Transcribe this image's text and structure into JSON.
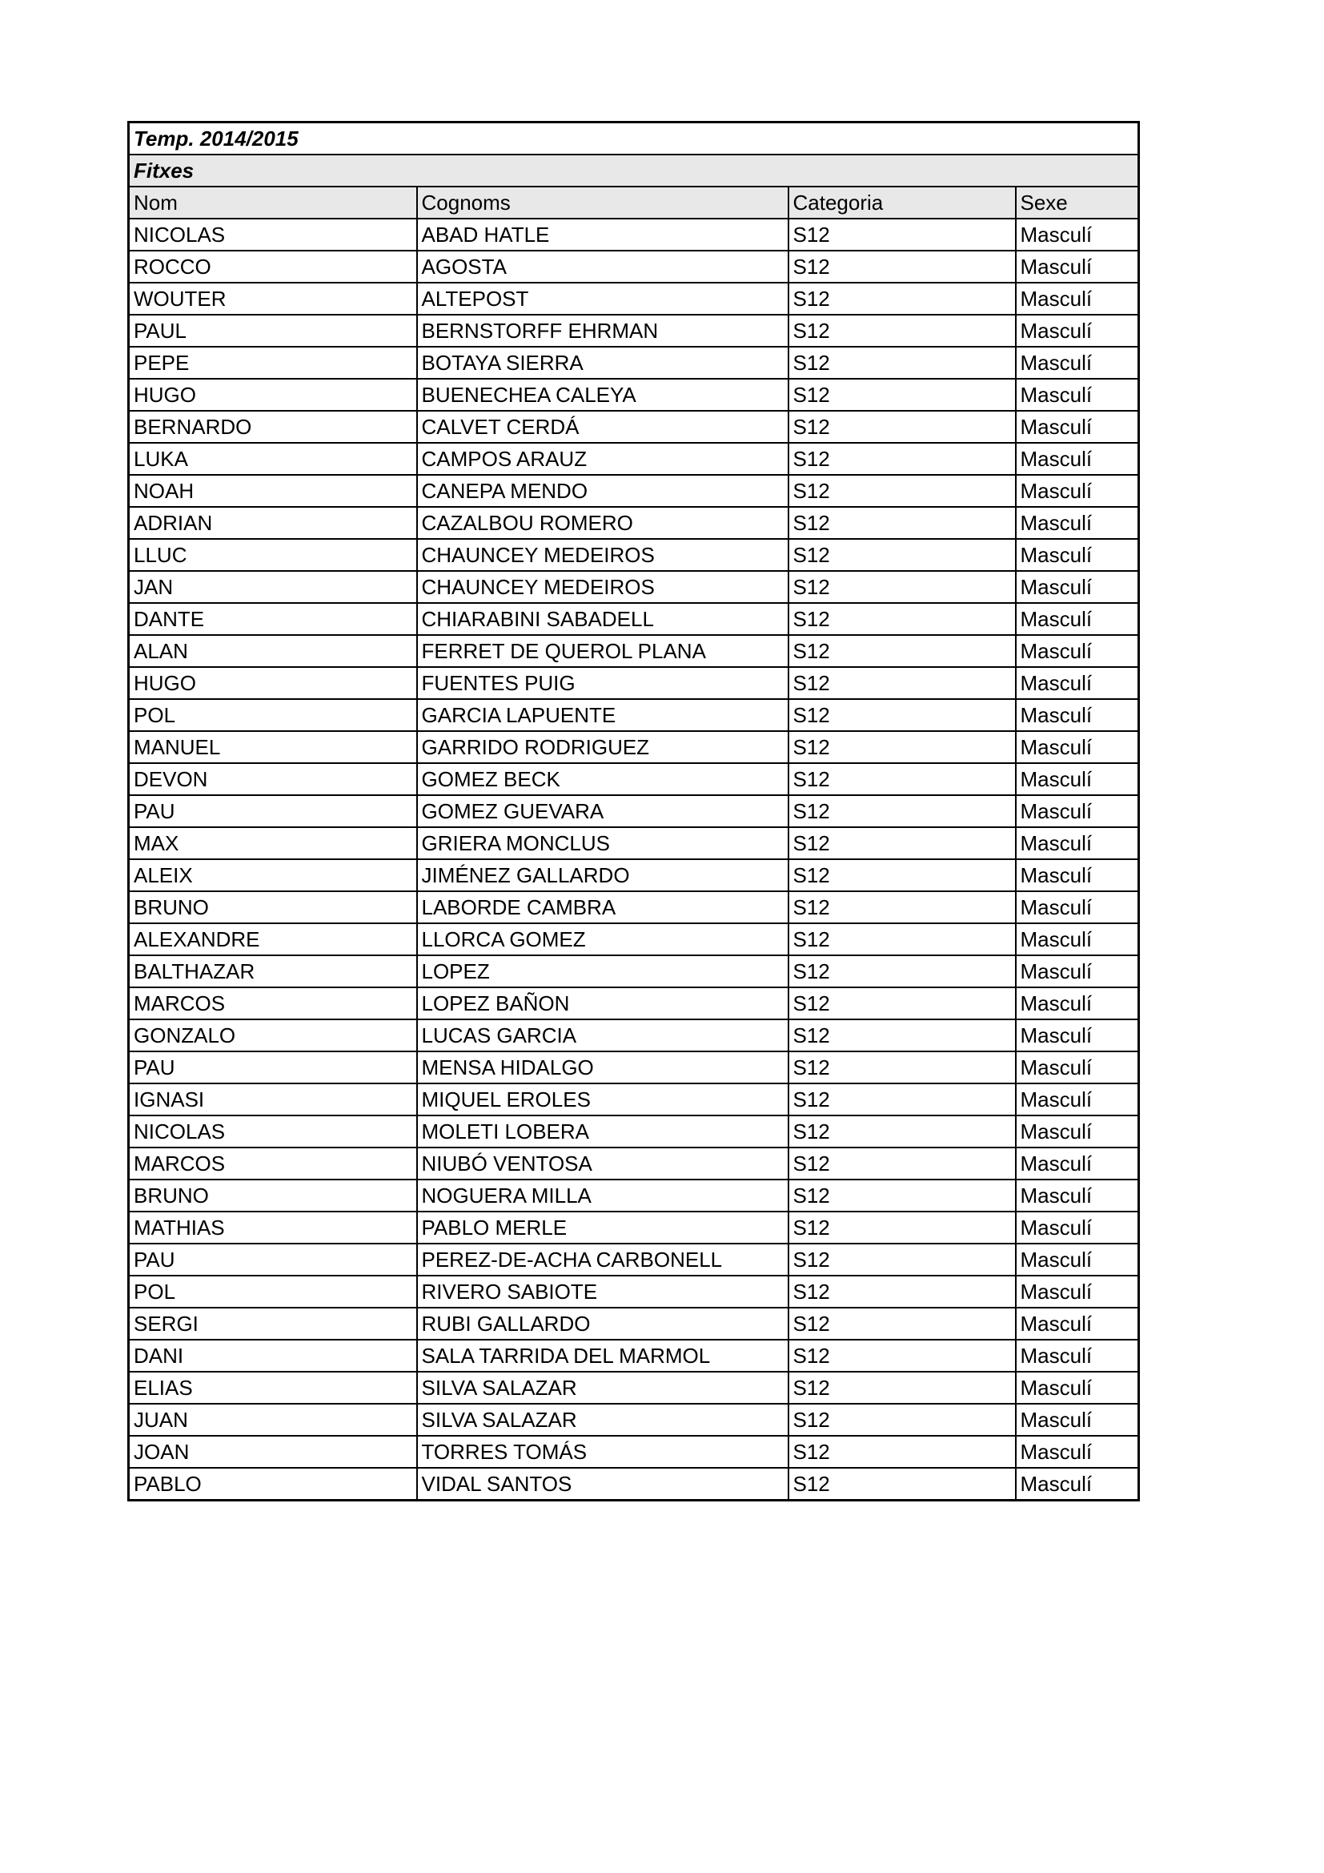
{
  "season_title": "Temp. 2014/2015",
  "section_title": "Fitxes",
  "columns": [
    "Nom",
    "Cognoms",
    "Categoria",
    "Sexe"
  ],
  "rows": [
    [
      "NICOLAS",
      "ABAD HATLE",
      "S12",
      "Masculí"
    ],
    [
      "ROCCO",
      "AGOSTA",
      "S12",
      "Masculí"
    ],
    [
      "WOUTER",
      "ALTEPOST",
      "S12",
      "Masculí"
    ],
    [
      "PAUL",
      "BERNSTORFF EHRMAN",
      "S12",
      "Masculí"
    ],
    [
      "PEPE",
      "BOTAYA SIERRA",
      "S12",
      "Masculí"
    ],
    [
      "HUGO",
      "BUENECHEA CALEYA",
      "S12",
      "Masculí"
    ],
    [
      "BERNARDO",
      "CALVET CERDÁ",
      "S12",
      "Masculí"
    ],
    [
      "LUKA",
      "CAMPOS ARAUZ",
      "S12",
      "Masculí"
    ],
    [
      "NOAH",
      "CANEPA MENDO",
      "S12",
      "Masculí"
    ],
    [
      "ADRIAN",
      "CAZALBOU ROMERO",
      "S12",
      "Masculí"
    ],
    [
      "LLUC",
      "CHAUNCEY MEDEIROS",
      "S12",
      "Masculí"
    ],
    [
      "JAN",
      "CHAUNCEY MEDEIROS",
      "S12",
      "Masculí"
    ],
    [
      "DANTE",
      "CHIARABINI SABADELL",
      "S12",
      "Masculí"
    ],
    [
      "ALAN",
      "FERRET DE QUEROL PLANA",
      "S12",
      "Masculí"
    ],
    [
      "HUGO",
      "FUENTES PUIG",
      "S12",
      "Masculí"
    ],
    [
      "POL",
      "GARCIA LAPUENTE",
      "S12",
      "Masculí"
    ],
    [
      "MANUEL",
      "GARRIDO RODRIGUEZ",
      "S12",
      "Masculí"
    ],
    [
      "DEVON",
      "GOMEZ BECK",
      "S12",
      "Masculí"
    ],
    [
      "PAU",
      "GOMEZ GUEVARA",
      "S12",
      "Masculí"
    ],
    [
      "MAX",
      "GRIERA MONCLUS",
      "S12",
      "Masculí"
    ],
    [
      "ALEIX",
      "JIMÉNEZ GALLARDO",
      "S12",
      "Masculí"
    ],
    [
      "BRUNO",
      "LABORDE CAMBRA",
      "S12",
      "Masculí"
    ],
    [
      "ALEXANDRE",
      "LLORCA GOMEZ",
      "S12",
      "Masculí"
    ],
    [
      "BALTHAZAR",
      "LOPEZ",
      "S12",
      "Masculí"
    ],
    [
      "MARCOS",
      "LOPEZ BAÑON",
      "S12",
      "Masculí"
    ],
    [
      "GONZALO",
      "LUCAS GARCIA",
      "S12",
      "Masculí"
    ],
    [
      "PAU",
      "MENSA HIDALGO",
      "S12",
      "Masculí"
    ],
    [
      "IGNASI",
      "MIQUEL EROLES",
      "S12",
      "Masculí"
    ],
    [
      "NICOLAS",
      "MOLETI LOBERA",
      "S12",
      "Masculí"
    ],
    [
      "MARCOS",
      "NIUBÓ VENTOSA",
      "S12",
      "Masculí"
    ],
    [
      "BRUNO",
      "NOGUERA MILLA",
      "S12",
      "Masculí"
    ],
    [
      "MATHIAS",
      "PABLO MERLE",
      "S12",
      "Masculí"
    ],
    [
      "PAU",
      "PEREZ-DE-ACHA CARBONELL",
      "S12",
      "Masculí"
    ],
    [
      "POL",
      "RIVERO SABIOTE",
      "S12",
      "Masculí"
    ],
    [
      "SERGI",
      "RUBI GALLARDO",
      "S12",
      "Masculí"
    ],
    [
      "DANI",
      "SALA TARRIDA DEL MARMOL",
      "S12",
      "Masculí"
    ],
    [
      "ELIAS",
      "SILVA SALAZAR",
      "S12",
      "Masculí"
    ],
    [
      "JUAN",
      "SILVA SALAZAR",
      "S12",
      "Masculí"
    ],
    [
      "JOAN",
      "TORRES TOMÁS",
      "S12",
      "Masculí"
    ],
    [
      "PABLO",
      "VIDAL SANTOS",
      "S12",
      "Masculí"
    ]
  ]
}
